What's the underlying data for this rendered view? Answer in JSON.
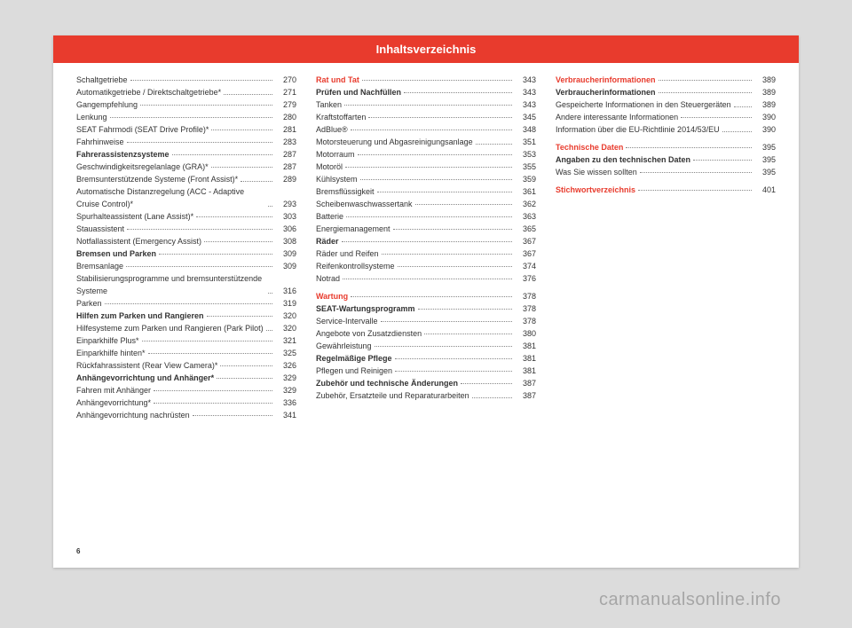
{
  "header": {
    "title": "Inhaltsverzeichnis"
  },
  "pageNumber": "6",
  "watermark": "carmanualsonline.info",
  "col1": [
    {
      "label": "Schaltgetriebe",
      "page": "270"
    },
    {
      "label": "Automatikgetriebe / Direktschaltgetriebe*",
      "page": "271",
      "wrap": true
    },
    {
      "label": "Gangempfehlung",
      "page": "279"
    },
    {
      "label": "Lenkung",
      "page": "280"
    },
    {
      "label": "SEAT Fahrmodi (SEAT Drive Profile)*",
      "page": "281"
    },
    {
      "label": "Fahrhinweise",
      "page": "283"
    },
    {
      "label": "Fahrerassistenzsysteme",
      "page": "287",
      "bold": true
    },
    {
      "label": "Geschwindigkeitsregelanlage (GRA)*",
      "page": "287"
    },
    {
      "label": "Bremsunterstützende Systeme (Front Assist)*",
      "page": "289",
      "wrap": true
    },
    {
      "label": "Automatische Distanzregelung (ACC - Adaptive Cruise Control)*",
      "page": "293",
      "wrap": true
    },
    {
      "label": "Spurhalteassistent (Lane Assist)*",
      "page": "303"
    },
    {
      "label": "Stauassistent",
      "page": "306"
    },
    {
      "label": "Notfallassistent (Emergency Assist)",
      "page": "308"
    },
    {
      "label": "Bremsen und Parken",
      "page": "309",
      "bold": true
    },
    {
      "label": "Bremsanlage",
      "page": "309"
    },
    {
      "label": "Stabilisierungsprogramme und bremsunterstützende Systeme",
      "page": "316",
      "wrap": true
    },
    {
      "label": "Parken",
      "page": "319"
    },
    {
      "label": "Hilfen zum Parken und Rangieren",
      "page": "320",
      "bold": true
    },
    {
      "label": "Hilfesysteme zum Parken und Rangieren (Park Pilot)",
      "page": "320",
      "wrap": true
    },
    {
      "label": "Einparkhilfe Plus*",
      "page": "321"
    },
    {
      "label": "Einparkhilfe hinten*",
      "page": "325"
    },
    {
      "label": "Rückfahrassistent (Rear View Camera)*",
      "page": "326"
    },
    {
      "label": "Anhängevorrichtung und Anhänger*",
      "page": "329",
      "bold": true
    },
    {
      "label": "Fahren mit Anhänger",
      "page": "329"
    },
    {
      "label": "Anhängevorrichtung*",
      "page": "336"
    },
    {
      "label": "Anhängevorrichtung nachrüsten",
      "page": "341"
    }
  ],
  "col2": [
    {
      "label": "Rat und Tat",
      "page": "343",
      "red": true
    },
    {
      "label": "Prüfen und Nachfüllen",
      "page": "343",
      "bold": true
    },
    {
      "label": "Tanken",
      "page": "343"
    },
    {
      "label": "Kraftstoffarten",
      "page": "345"
    },
    {
      "label": "AdBlue®",
      "page": "348"
    },
    {
      "label": "Motorsteuerung und Abgasreinigungsanlage",
      "page": "351",
      "wrap": true
    },
    {
      "label": "Motorraum",
      "page": "353"
    },
    {
      "label": "Motoröl",
      "page": "355"
    },
    {
      "label": "Kühlsystem",
      "page": "359"
    },
    {
      "label": "Bremsflüssigkeit",
      "page": "361"
    },
    {
      "label": "Scheibenwaschwassertank",
      "page": "362"
    },
    {
      "label": "Batterie",
      "page": "363"
    },
    {
      "label": "Energiemanagement",
      "page": "365"
    },
    {
      "label": "Räder",
      "page": "367",
      "bold": true
    },
    {
      "label": "Räder und Reifen",
      "page": "367"
    },
    {
      "label": "Reifenkontrollsysteme",
      "page": "374"
    },
    {
      "label": "Notrad",
      "page": "376"
    },
    {
      "label": "Wartung",
      "page": "378",
      "red": true,
      "spaceBefore": true
    },
    {
      "label": "SEAT-Wartungsprogramm",
      "page": "378",
      "bold": true
    },
    {
      "label": "Service-Intervalle",
      "page": "378"
    },
    {
      "label": "Angebote von Zusatzdiensten",
      "page": "380"
    },
    {
      "label": "Gewährleistung",
      "page": "381"
    },
    {
      "label": "Regelmäßige Pflege",
      "page": "381",
      "bold": true
    },
    {
      "label": "Pflegen und Reinigen",
      "page": "381"
    },
    {
      "label": "Zubehör und technische Änderungen",
      "page": "387",
      "bold": true
    },
    {
      "label": "Zubehör, Ersatzteile und Reparaturarbeiten",
      "page": "387",
      "wrap": true
    }
  ],
  "col3": [
    {
      "label": "Verbraucherinformationen",
      "page": "389",
      "red": true
    },
    {
      "label": "Verbraucherinformationen",
      "page": "389",
      "bold": true
    },
    {
      "label": "Gespeicherte Informationen in den Steuergeräten",
      "page": "389",
      "wrap": true
    },
    {
      "label": "Andere interessante Informationen",
      "page": "390"
    },
    {
      "label": "Information über die EU-Richtlinie 2014/53/EU",
      "page": "390",
      "wrap": true
    },
    {
      "label": "Technische Daten",
      "page": "395",
      "red": true,
      "spaceBefore": true
    },
    {
      "label": "Angaben zu den technischen Daten",
      "page": "395",
      "bold": true
    },
    {
      "label": "Was Sie wissen sollten",
      "page": "395"
    },
    {
      "label": "Stichwortverzeichnis",
      "page": "401",
      "red": true,
      "spaceBefore": true
    }
  ]
}
